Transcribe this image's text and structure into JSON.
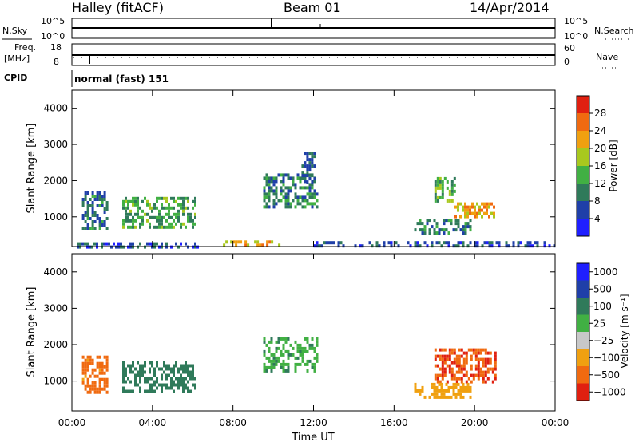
{
  "header": {
    "station": "Halley (fitACF)",
    "beam": "Beam 01",
    "date": "14/Apr/2014"
  },
  "meta_panels": {
    "nsky_label": "N.Sky",
    "nsky_ticks": [
      "10^5",
      "10^0"
    ],
    "nsearch_label": "N.Search",
    "nsearch_ticks": [
      "10^5",
      "10^0"
    ],
    "freq_label": "Freq.",
    "freq_unit": "[MHz]",
    "freq_ticks": [
      "18",
      "8"
    ],
    "nave_label": "Nave",
    "nave_ticks": [
      "60",
      "0"
    ],
    "cpid_label": "CPID",
    "cpid_value": "normal (fast) 151"
  },
  "colors": {
    "power_scale": [
      "#1f1fff",
      "#1f3fa8",
      "#2f7a5a",
      "#41b043",
      "#a8c81e",
      "#f0a010",
      "#f06a10",
      "#e02010"
    ],
    "velocity_scale": [
      "#1f1fff",
      "#1f3fa8",
      "#2f7a5a",
      "#41b043",
      "#c8c8c8",
      "#f0a010",
      "#f06a10",
      "#e02010"
    ]
  },
  "chart_data": [
    {
      "type": "heatmap",
      "panel": "power",
      "ylabel": "Slant Range [km]",
      "xlabel": "",
      "x_ticks": [
        "00:00",
        "04:00",
        "08:00",
        "12:00",
        "16:00",
        "20:00",
        "00:00"
      ],
      "xlim_hours": [
        0,
        24
      ],
      "y_ticks": [
        1000,
        2000,
        3000,
        4000
      ],
      "ylim_km": [
        180,
        4500
      ],
      "colorbar": {
        "label": "Power [dB]",
        "ticks": [
          4,
          8,
          12,
          16,
          20,
          24,
          28
        ],
        "range": [
          0,
          32
        ]
      },
      "echo_regions": [
        {
          "t0": 0.5,
          "t1": 1.8,
          "r0": 700,
          "r1": 1700,
          "value": 9
        },
        {
          "t0": 2.5,
          "t1": 6.1,
          "r0": 700,
          "r1": 1550,
          "value": 13
        },
        {
          "t0": 0.0,
          "t1": 6.3,
          "r0": 190,
          "r1": 300,
          "value": 6
        },
        {
          "t0": 7.5,
          "t1": 10.5,
          "r0": 200,
          "r1": 350,
          "value": 22
        },
        {
          "t0": 9.5,
          "t1": 12.2,
          "r0": 1300,
          "r1": 2200,
          "value": 10
        },
        {
          "t0": 11.4,
          "t1": 12.1,
          "r0": 2000,
          "r1": 2800,
          "value": 8
        },
        {
          "t0": 18.0,
          "t1": 19.0,
          "r0": 1400,
          "r1": 2100,
          "value": 14
        },
        {
          "t0": 19.0,
          "t1": 21.0,
          "r0": 1000,
          "r1": 1400,
          "value": 22
        },
        {
          "t0": 17.0,
          "t1": 19.8,
          "r0": 550,
          "r1": 950,
          "value": 10
        },
        {
          "t0": 12.0,
          "t1": 24.0,
          "r0": 190,
          "r1": 330,
          "value": 6
        }
      ]
    },
    {
      "type": "heatmap",
      "panel": "velocity",
      "ylabel": "Slant Range [km]",
      "xlabel": "Time UT",
      "x_ticks": [
        "00:00",
        "04:00",
        "08:00",
        "12:00",
        "16:00",
        "20:00",
        "00:00"
      ],
      "xlim_hours": [
        0,
        24
      ],
      "y_ticks": [
        1000,
        2000,
        3000,
        4000
      ],
      "ylim_km": [
        180,
        4500
      ],
      "colorbar": {
        "label": "Velocity [m s⁻¹]",
        "ticks": [
          "1000",
          "500",
          "100",
          "25",
          "−25",
          "−100",
          "−500",
          "−1000"
        ]
      },
      "echo_regions": [
        {
          "t0": 0.5,
          "t1": 1.8,
          "r0": 700,
          "r1": 1700,
          "value": -150
        },
        {
          "t0": 2.5,
          "t1": 6.1,
          "r0": 700,
          "r1": 1550,
          "value": 300
        },
        {
          "t0": 9.5,
          "t1": 12.2,
          "r0": 1300,
          "r1": 2200,
          "value": 80
        },
        {
          "t0": 18.0,
          "t1": 21.0,
          "r0": 1000,
          "r1": 1900,
          "value": -450
        },
        {
          "t0": 17.0,
          "t1": 19.8,
          "r0": 550,
          "r1": 950,
          "value": -60
        }
      ]
    }
  ]
}
